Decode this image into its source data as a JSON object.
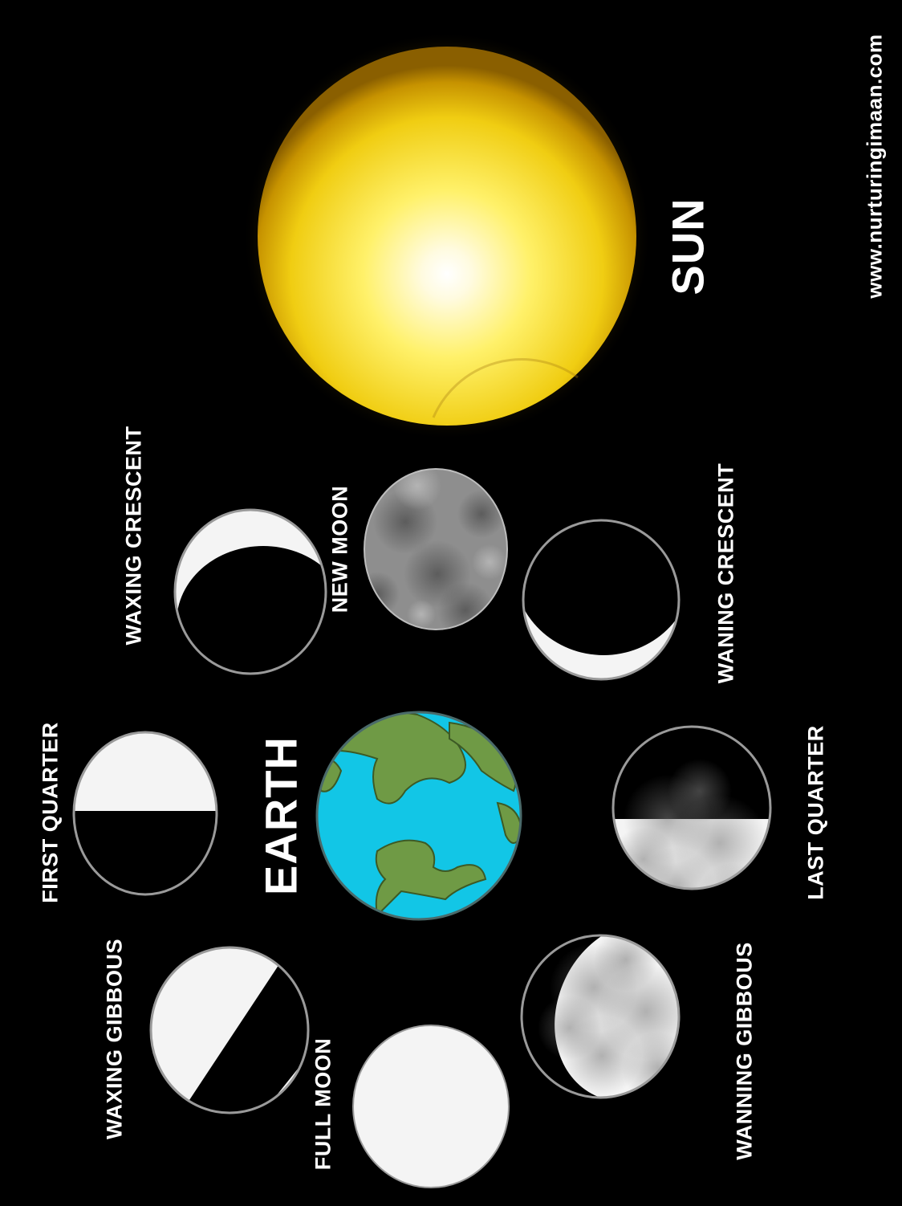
{
  "labels": {
    "sun": "SUN",
    "earth": "EARTH",
    "website": "www.nurturingimaan.com"
  },
  "phases": {
    "new_moon": "NEW MOON",
    "waxing_crescent": "WAXING CRESCENT",
    "first_quarter": "FIRST QUARTER",
    "waxing_gibbous": "WAXING GIBBOUS",
    "full_moon": "FULL MOON",
    "waning_gibbous": "WANNING GIBBOUS",
    "last_quarter": "LAST QUARTER",
    "waning_crescent": "WANING CRESCENT"
  },
  "colors": {
    "background": "#000000",
    "sun_core": "#fffbe0",
    "sun_edge": "#e0b000",
    "ocean": "#12c6e6",
    "land": "#6f9a45",
    "moon_light": "#f4f4f4",
    "moon_shadow": "#000000",
    "new_moon": "#8e8e8e"
  }
}
